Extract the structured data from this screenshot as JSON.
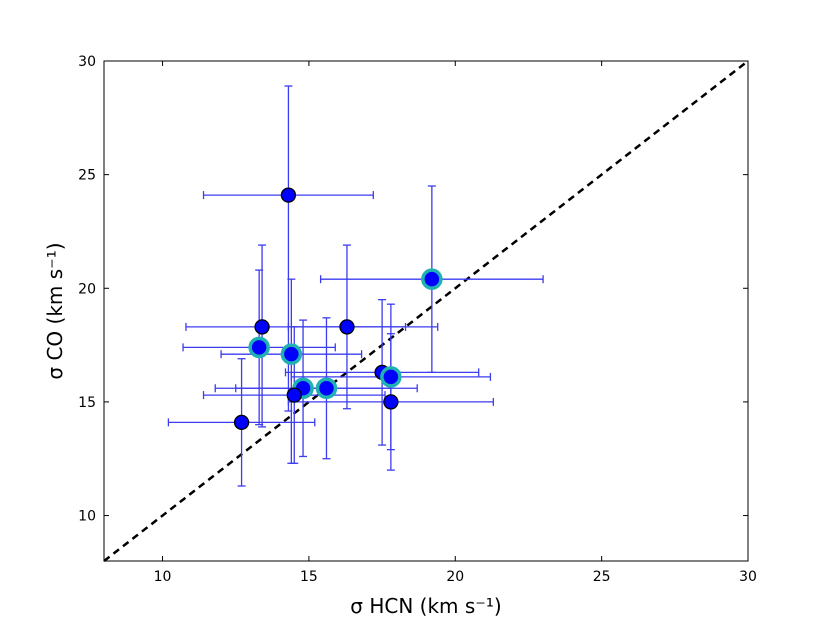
{
  "chart_data": {
    "type": "scatter",
    "xlabel": "σ HCN (km s⁻¹)",
    "ylabel": "σ CO (km s⁻¹)",
    "xlim": [
      8,
      30
    ],
    "ylim": [
      8,
      30
    ],
    "xticks": [
      "10",
      "15",
      "20",
      "25",
      "30"
    ],
    "yticks": [
      "10",
      "15",
      "20",
      "25",
      "30"
    ],
    "grid": false,
    "reference_line": {
      "style": "dashed",
      "color": "#000000",
      "from": [
        8,
        8
      ],
      "to": [
        30,
        30
      ]
    },
    "colors": {
      "marker_fill": "#0000ff",
      "marker_edge": "#000000",
      "highlight_edge": "#20b2b2",
      "errorbar": "#3c3cf0"
    },
    "points": [
      {
        "x": 14.3,
        "y": 24.1,
        "xerr": [
          2.9,
          2.9
        ],
        "yerr": [
          9.5,
          4.8
        ],
        "highlight": false
      },
      {
        "x": 19.2,
        "y": 20.4,
        "xerr": [
          3.8,
          3.8
        ],
        "yerr": [
          4.1,
          4.1
        ],
        "highlight": true
      },
      {
        "x": 13.4,
        "y": 18.3,
        "xerr": [
          2.6,
          6.0
        ],
        "yerr": [
          4.4,
          3.6
        ],
        "highlight": false
      },
      {
        "x": 16.3,
        "y": 18.3,
        "xerr": [
          2.0,
          2.0
        ],
        "yerr": [
          3.6,
          3.6
        ],
        "highlight": false
      },
      {
        "x": 13.3,
        "y": 17.4,
        "xerr": [
          2.6,
          2.6
        ],
        "yerr": [
          3.4,
          3.4
        ],
        "highlight": true
      },
      {
        "x": 14.4,
        "y": 17.1,
        "xerr": [
          2.4,
          2.4
        ],
        "yerr": [
          4.8,
          3.3
        ],
        "highlight": true
      },
      {
        "x": 17.5,
        "y": 16.3,
        "xerr": [
          3.3,
          3.3
        ],
        "yerr": [
          3.2,
          3.2
        ],
        "highlight": false
      },
      {
        "x": 17.8,
        "y": 16.1,
        "xerr": [
          3.4,
          3.4
        ],
        "yerr": [
          3.2,
          3.2
        ],
        "highlight": true
      },
      {
        "x": 14.8,
        "y": 15.6,
        "xerr": [
          3.0,
          3.0
        ],
        "yerr": [
          3.0,
          3.0
        ],
        "highlight": true
      },
      {
        "x": 15.6,
        "y": 15.6,
        "xerr": [
          3.1,
          3.1
        ],
        "yerr": [
          3.1,
          3.1
        ],
        "highlight": true
      },
      {
        "x": 14.5,
        "y": 15.3,
        "xerr": [
          3.1,
          3.1
        ],
        "yerr": [
          3.0,
          3.0
        ],
        "highlight": false
      },
      {
        "x": 17.8,
        "y": 15.0,
        "xerr": [
          3.5,
          3.5
        ],
        "yerr": [
          3.0,
          3.0
        ],
        "highlight": false
      },
      {
        "x": 12.7,
        "y": 14.1,
        "xerr": [
          2.5,
          2.5
        ],
        "yerr": [
          2.8,
          2.8
        ],
        "highlight": false
      }
    ]
  }
}
